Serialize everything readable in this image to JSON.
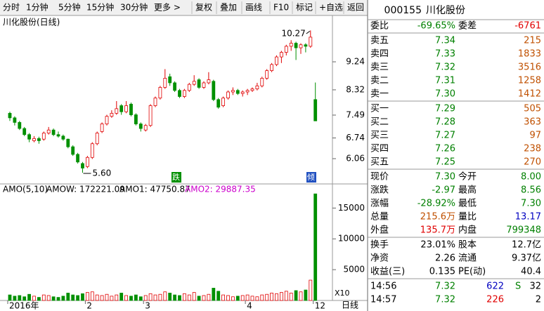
{
  "toolbar": {
    "buttons": [
      "分时",
      "1分钟",
      "5分钟",
      "15分钟",
      "30分钟",
      "更多 >",
      "复权",
      "叠加",
      "画线",
      "F10",
      "标记",
      "+自选",
      "返回"
    ]
  },
  "chart_data": {
    "type": "candlestick",
    "title": "川化股份(日线)",
    "categories": [
      "2016年",
      null,
      null,
      null,
      null,
      null,
      null,
      null,
      null,
      null,
      null,
      null,
      null,
      null,
      null,
      null,
      "2",
      null,
      null,
      null,
      null,
      null,
      null,
      null,
      null,
      null,
      null,
      null,
      "3",
      null,
      null,
      null,
      null,
      null,
      null,
      null,
      null,
      null,
      null,
      null,
      null,
      null,
      null,
      null,
      null,
      null,
      null,
      null,
      null,
      "4",
      null,
      null,
      null,
      null,
      null,
      null,
      null,
      null,
      null,
      null,
      null,
      null,
      null,
      "12"
    ],
    "ohlc": [
      [
        7.55,
        7.6,
        7.3,
        7.4
      ],
      [
        7.4,
        7.45,
        7.15,
        7.25
      ],
      [
        7.25,
        7.3,
        7.0,
        7.05
      ],
      [
        7.05,
        7.1,
        6.8,
        6.85
      ],
      [
        6.85,
        6.9,
        6.6,
        6.7
      ],
      [
        6.65,
        6.8,
        6.6,
        6.72
      ],
      [
        6.72,
        6.78,
        6.55,
        6.65
      ],
      [
        6.7,
        6.95,
        6.65,
        6.9
      ],
      [
        6.9,
        7.1,
        6.85,
        7.0
      ],
      [
        7.0,
        7.05,
        6.8,
        6.85
      ],
      [
        6.85,
        6.95,
        6.75,
        6.8
      ],
      [
        6.8,
        6.85,
        6.65,
        6.7
      ],
      [
        6.7,
        6.72,
        6.4,
        6.45
      ],
      [
        6.45,
        6.5,
        6.15,
        6.2
      ],
      [
        6.2,
        6.25,
        5.9,
        5.95
      ],
      [
        5.9,
        5.95,
        5.6,
        5.75
      ],
      [
        5.8,
        6.15,
        5.75,
        6.1
      ],
      [
        6.1,
        6.6,
        6.05,
        6.55
      ],
      [
        6.55,
        6.95,
        6.5,
        6.9
      ],
      [
        6.95,
        7.25,
        6.9,
        7.2
      ],
      [
        7.2,
        7.5,
        7.15,
        7.45
      ],
      [
        7.45,
        7.65,
        7.4,
        7.55
      ],
      [
        7.55,
        7.95,
        7.5,
        7.7
      ],
      [
        7.8,
        7.85,
        7.5,
        7.6
      ],
      [
        7.6,
        7.95,
        7.55,
        7.8
      ],
      [
        7.85,
        7.9,
        7.45,
        7.5
      ],
      [
        7.5,
        7.55,
        7.15,
        7.2
      ],
      [
        7.2,
        7.25,
        6.95,
        7.05
      ],
      [
        7.0,
        7.2,
        6.95,
        7.15
      ],
      [
        7.15,
        7.85,
        7.1,
        7.8
      ],
      [
        7.8,
        8.1,
        7.75,
        8.05
      ],
      [
        8.05,
        8.45,
        8.0,
        8.4
      ],
      [
        8.4,
        9.0,
        8.35,
        8.7
      ],
      [
        8.75,
        8.85,
        8.45,
        8.55
      ],
      [
        8.55,
        8.6,
        8.25,
        8.3
      ],
      [
        8.3,
        8.35,
        8.05,
        8.1
      ],
      [
        8.1,
        8.35,
        8.05,
        8.3
      ],
      [
        8.3,
        8.55,
        8.25,
        8.5
      ],
      [
        8.5,
        8.8,
        8.45,
        8.6
      ],
      [
        8.65,
        8.7,
        8.35,
        8.4
      ],
      [
        8.4,
        8.6,
        8.35,
        8.55
      ],
      [
        8.55,
        8.9,
        8.5,
        8.65
      ],
      [
        8.6,
        8.65,
        7.95,
        8.0
      ],
      [
        8.0,
        8.05,
        7.7,
        7.75
      ],
      [
        7.8,
        8.1,
        7.75,
        8.05
      ],
      [
        8.05,
        8.3,
        8.0,
        8.25
      ],
      [
        8.25,
        8.4,
        8.15,
        8.3
      ],
      [
        8.3,
        8.35,
        8.15,
        8.2
      ],
      [
        8.2,
        8.3,
        8.1,
        8.25
      ],
      [
        8.25,
        8.35,
        8.15,
        8.3
      ],
      [
        8.3,
        8.4,
        8.25,
        8.35
      ],
      [
        8.35,
        8.55,
        8.3,
        8.45
      ],
      [
        8.45,
        8.75,
        8.4,
        8.7
      ],
      [
        8.7,
        9.0,
        8.65,
        8.95
      ],
      [
        8.95,
        9.2,
        8.9,
        9.15
      ],
      [
        9.15,
        9.45,
        9.1,
        9.4
      ],
      [
        9.4,
        9.6,
        9.2,
        9.55
      ],
      [
        9.55,
        9.8,
        9.45,
        9.75
      ],
      [
        9.75,
        9.95,
        9.6,
        9.85
      ],
      [
        9.85,
        9.9,
        9.3,
        9.7
      ],
      [
        9.7,
        9.85,
        9.5,
        9.8
      ],
      [
        9.8,
        9.85,
        9.55,
        9.75
      ],
      [
        9.75,
        10.27,
        9.7,
        10.05
      ],
      [
        8.0,
        8.56,
        7.3,
        7.3
      ]
    ],
    "volume": [
      900,
      700,
      800,
      600,
      1000,
      700,
      500,
      900,
      800,
      600,
      500,
      700,
      1200,
      900,
      800,
      1100,
      1300,
      1400,
      900,
      800,
      1000,
      700,
      900,
      1200,
      800,
      700,
      900,
      600,
      800,
      1100,
      900,
      1000,
      1400,
      1200,
      900,
      800,
      1100,
      900,
      1300,
      700,
      800,
      1000,
      2000,
      1500,
      900,
      800,
      600,
      700,
      800,
      900,
      700,
      600,
      900,
      1000,
      1200,
      1100,
      1300,
      1500,
      1200,
      1600,
      1400,
      1700,
      3300,
      17300
    ],
    "up_color": "#e00000",
    "down_color": "#009000",
    "ylim": [
      5.23,
      10.67
    ],
    "yticks": [
      6.06,
      6.74,
      7.49,
      8.32,
      9.24
    ],
    "volume_ylim": [
      0,
      18800
    ],
    "volume_yticks": [
      5000,
      10000,
      15000
    ],
    "high_label": "10.27",
    "low_label": "5.60",
    "markers": [
      "跌",
      "倾"
    ],
    "indicator": [
      "AMO(5,10)",
      "AMOW: 172221.09",
      "AMO1: 47750.87",
      "AMO2: 29887.35"
    ],
    "indicator_colors": [
      "#000000",
      "#000000",
      "#000000",
      "#cc00cc"
    ],
    "volume_unit": "X10",
    "period": "日线"
  },
  "quote": {
    "code": "000155",
    "name": "川化股份",
    "sections": [
      [
        {
          "cells": [
            "委比",
            "-69.65%",
            "委差",
            "-6761"
          ],
          "colors": [
            "#000",
            "#008000",
            "#000",
            "#e00000"
          ]
        }
      ],
      [
        {
          "cells": [
            "卖五",
            "7.34",
            "215"
          ],
          "colors": [
            "#000",
            "#008000",
            "#c05000"
          ]
        },
        {
          "cells": [
            "卖四",
            "7.33",
            "1833"
          ],
          "colors": [
            "#000",
            "#008000",
            "#c05000"
          ]
        },
        {
          "cells": [
            "卖三",
            "7.32",
            "3516"
          ],
          "colors": [
            "#000",
            "#008000",
            "#c05000"
          ]
        },
        {
          "cells": [
            "卖二",
            "7.31",
            "1258"
          ],
          "colors": [
            "#000",
            "#008000",
            "#c05000"
          ]
        },
        {
          "cells": [
            "卖一",
            "7.30",
            "1412"
          ],
          "colors": [
            "#000",
            "#008000",
            "#c05000"
          ]
        }
      ],
      [
        {
          "cells": [
            "买一",
            "7.29",
            "505"
          ],
          "colors": [
            "#000",
            "#008000",
            "#c05000"
          ]
        },
        {
          "cells": [
            "买二",
            "7.28",
            "363"
          ],
          "colors": [
            "#000",
            "#008000",
            "#c05000"
          ]
        },
        {
          "cells": [
            "买三",
            "7.27",
            "97"
          ],
          "colors": [
            "#000",
            "#008000",
            "#c05000"
          ]
        },
        {
          "cells": [
            "买四",
            "7.26",
            "238"
          ],
          "colors": [
            "#000",
            "#008000",
            "#c05000"
          ]
        },
        {
          "cells": [
            "买五",
            "7.25",
            "270"
          ],
          "colors": [
            "#000",
            "#008000",
            "#c05000"
          ]
        }
      ],
      [
        {
          "cells": [
            "现价",
            "7.30",
            "今开",
            "8.00"
          ],
          "colors": [
            "#000",
            "#008000",
            "#000",
            "#008000"
          ]
        },
        {
          "cells": [
            "涨跌",
            "-2.97",
            "最高",
            "8.56"
          ],
          "colors": [
            "#000",
            "#008000",
            "#000",
            "#008000"
          ]
        },
        {
          "cells": [
            "涨幅",
            "-28.92%",
            "最低",
            "7.30"
          ],
          "colors": [
            "#000",
            "#008000",
            "#000",
            "#008000"
          ]
        },
        {
          "cells": [
            "总量",
            "215.6万",
            "量比",
            "13.17"
          ],
          "colors": [
            "#000",
            "#c05000",
            "#000",
            "#0000c0"
          ]
        },
        {
          "cells": [
            "外盘",
            "135.7万",
            "内盘",
            "799348"
          ],
          "colors": [
            "#000",
            "#e00000",
            "#000",
            "#008000"
          ]
        }
      ],
      [
        {
          "cells": [
            "换手",
            "23.01%",
            "股本",
            "12.7亿"
          ],
          "colors": [
            "#000",
            "#000",
            "#000",
            "#000"
          ]
        },
        {
          "cells": [
            "净资",
            "2.26",
            "流通",
            "9.37亿"
          ],
          "colors": [
            "#000",
            "#000",
            "#000",
            "#000"
          ]
        },
        {
          "cells": [
            "收益(三)",
            "0.135",
            "PE(动)",
            "40.4"
          ],
          "colors": [
            "#000",
            "#000",
            "#000",
            "#000"
          ]
        }
      ]
    ],
    "ticks": [
      {
        "time": "14:56",
        "price": "7.32",
        "volume": "622",
        "flag": "S",
        "count": "32"
      },
      {
        "time": "14:57",
        "price": "7.32",
        "volume": "226",
        "count": "2"
      }
    ]
  }
}
